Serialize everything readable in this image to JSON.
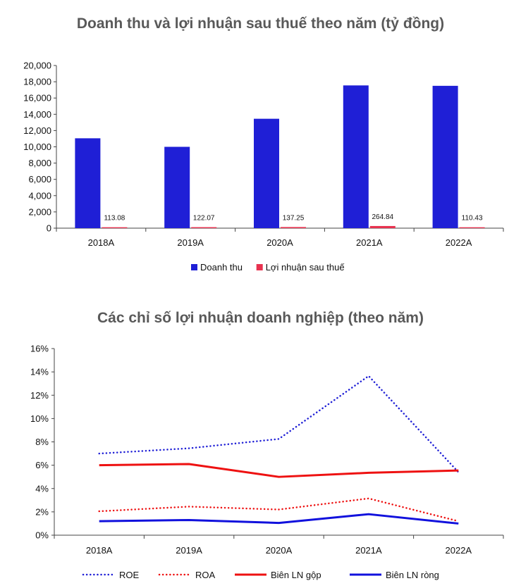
{
  "chart_data": [
    {
      "type": "bar",
      "title": "Doanh thu và lợi nhuận sau thuế theo năm (tỷ đồng)",
      "categories": [
        "2018A",
        "2019A",
        "2020A",
        "2021A",
        "2022A"
      ],
      "series": [
        {
          "name": "Doanh thu",
          "color": "#1f1fd6",
          "values": [
            11050,
            10000,
            13450,
            17550,
            17500
          ]
        },
        {
          "name": "Lợi nhuận sau thuế",
          "color": "#e8324f",
          "values": [
            113.08,
            122.07,
            137.25,
            264.84,
            110.43
          ],
          "labels": [
            "113.08",
            "122.07",
            "137.25",
            "264.84",
            "110.43"
          ]
        }
      ],
      "ylim": [
        0,
        20000
      ],
      "yticks": [
        "0",
        "2,000",
        "4,000",
        "6,000",
        "8,000",
        "10,000",
        "12,000",
        "14,000",
        "16,000",
        "18,000",
        "20,000"
      ],
      "legend": "bottom"
    },
    {
      "type": "line",
      "title": "Các chỉ số lợi nhuận doanh nghiệp (theo năm)",
      "categories": [
        "2018A",
        "2019A",
        "2020A",
        "2021A",
        "2022A"
      ],
      "series": [
        {
          "name": "ROE",
          "color": "#1f1fd6",
          "style": "dotted",
          "values": [
            7.0,
            7.45,
            8.25,
            13.65,
            5.4
          ]
        },
        {
          "name": "ROA",
          "color": "#ee1111",
          "style": "dotted",
          "values": [
            2.05,
            2.45,
            2.2,
            3.15,
            1.2
          ]
        },
        {
          "name": "Biên LN gộp",
          "color": "#ee1111",
          "style": "solid",
          "values": [
            6.0,
            6.1,
            5.0,
            5.35,
            5.55
          ]
        },
        {
          "name": "Biên LN ròng",
          "color": "#1111dd",
          "style": "solid",
          "values": [
            1.2,
            1.3,
            1.05,
            1.8,
            1.0
          ]
        }
      ],
      "ylim": [
        0,
        16
      ],
      "yticks": [
        "0%",
        "2%",
        "4%",
        "6%",
        "8%",
        "10%",
        "12%",
        "14%",
        "16%"
      ],
      "legend": "bottom"
    }
  ]
}
